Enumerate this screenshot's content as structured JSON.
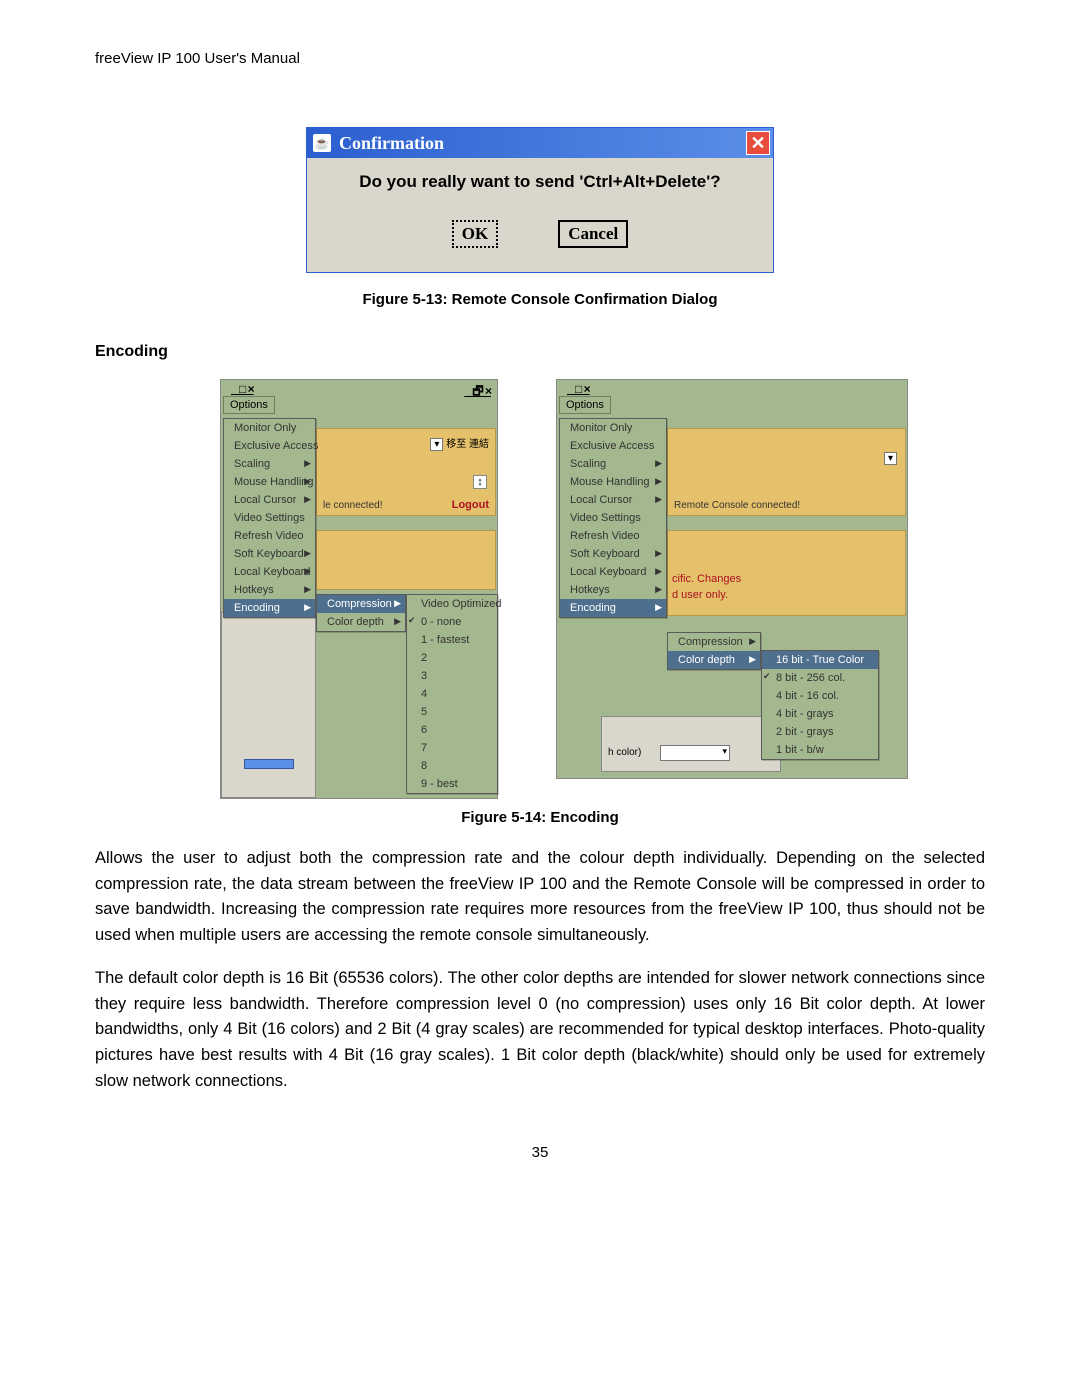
{
  "header": "freeView IP 100 User's Manual",
  "dialog": {
    "title": "Confirmation",
    "message": "Do you really want to send 'Ctrl+Alt+Delete'?",
    "ok": "OK",
    "cancel": "Cancel"
  },
  "fig513_caption": "Figure 5-13: Remote Console Confirmation Dialog",
  "encoding_heading": "Encoding",
  "shot": {
    "options": "Options",
    "optionsMenu": [
      {
        "label": "Monitor Only"
      },
      {
        "label": "Exclusive Access"
      },
      {
        "label": "Scaling",
        "sub": true
      },
      {
        "label": "Mouse Handling",
        "sub": true
      },
      {
        "label": "Local Cursor",
        "sub": true
      },
      {
        "label": "Video Settings"
      },
      {
        "label": "Refresh Video"
      },
      {
        "label": "Soft Keyboard",
        "sub": true
      },
      {
        "label": "Local Keyboard",
        "sub": true
      },
      {
        "label": "Hotkeys",
        "sub": true
      },
      {
        "label": "Encoding",
        "sub": true,
        "sel": true
      }
    ],
    "left": {
      "connected": "le connected!",
      "logout": "Logout",
      "moveTo": "移至",
      "link": "連結",
      "encSub": [
        {
          "label": "Compression",
          "sub": true,
          "sel": true
        },
        {
          "label": "Color depth",
          "sub": true
        }
      ],
      "compMenu": [
        "Video Optimized",
        "0 - none",
        "1 - fastest",
        "2",
        "3",
        "4",
        "5",
        "6",
        "7",
        "8",
        "9 - best"
      ]
    },
    "right": {
      "connected": "Remote Console connected!",
      "cific": "cific. Changes",
      "duser": "d user only.",
      "encSub": [
        {
          "label": "Compression",
          "sub": true
        },
        {
          "label": "Color depth",
          "sub": true,
          "sel": true
        }
      ],
      "colorMenu": [
        "16 bit - True Color",
        "8 bit - 256 col.",
        "4 bit - 16 col.",
        "4 bit - grays",
        "2 bit - grays",
        "1 bit - b/w"
      ],
      "hcolor": "h color)"
    }
  },
  "fig514_caption": "Figure 5-14: Encoding",
  "para1": "Allows the user to adjust both the compression rate and the colour depth individually. Depending on the selected compression rate, the data stream between the freeView IP 100 and the Remote Console will be compressed in order to save bandwidth. Increasing the compression rate requires more resources from the freeView IP 100, thus should not be used when multiple users are accessing the remote console simultaneously.",
  "para2": "The default color depth is 16 Bit (65536 colors). The other color depths are intended for slower network connections since they require less bandwidth. Therefore compression level 0 (no compression) uses only 16 Bit color depth. At lower bandwidths, only 4 Bit (16 colors) and 2 Bit (4 gray scales) are recommended for typical desktop interfaces. Photo-quality pictures have best results with 4 Bit (16 gray scales). 1 Bit color depth (black/white) should only be used for extremely slow network connections.",
  "page_number": "35"
}
